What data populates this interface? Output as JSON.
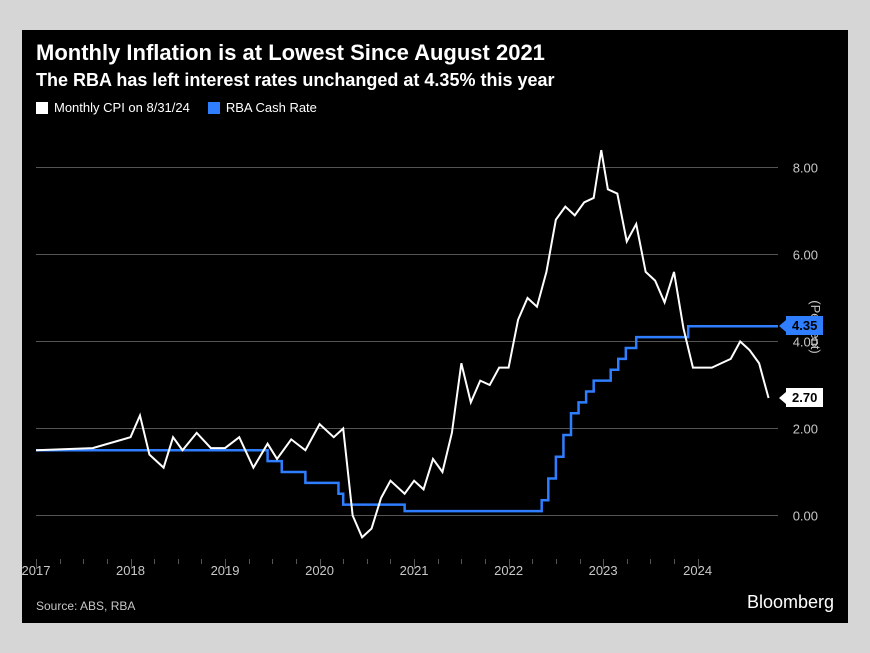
{
  "title": "Monthly Inflation is at Lowest Since August 2021",
  "subtitle": "The RBA has left interest rates unchanged at 4.35% this year",
  "title_fontsize": 22,
  "subtitle_fontsize": 18,
  "source": "Source: ABS, RBA",
  "brand": "Bloomberg",
  "background_color": "#000000",
  "text_color": "#ffffff",
  "muted_text_color": "#c7c7c7",
  "grid_color": "#555555",
  "xAxis": {
    "min": 2017.0,
    "max": 2024.85,
    "majorTicks": [
      2017,
      2018,
      2019,
      2020,
      2021,
      2022,
      2023,
      2024
    ],
    "minorPerMajor": 3
  },
  "yAxis": {
    "min": -1.0,
    "max": 9.0,
    "ticks": [
      0,
      2,
      4,
      6,
      8
    ],
    "tickLabels": [
      "0.00",
      "2.00",
      "4.00",
      "6.00",
      "8.00"
    ],
    "title": "(Percent)"
  },
  "series": [
    {
      "name": "Monthly CPI on 8/31/24",
      "color": "#ffffff",
      "lineWidth": 2,
      "endLabel": "2.70",
      "endLabelBg": "#ffffff",
      "endLabelColor": "#000000",
      "data": [
        [
          2017.0,
          1.5
        ],
        [
          2017.6,
          1.55
        ],
        [
          2018.0,
          1.8
        ],
        [
          2018.1,
          2.3
        ],
        [
          2018.2,
          1.4
        ],
        [
          2018.35,
          1.1
        ],
        [
          2018.45,
          1.8
        ],
        [
          2018.55,
          1.5
        ],
        [
          2018.7,
          1.9
        ],
        [
          2018.85,
          1.55
        ],
        [
          2019.0,
          1.55
        ],
        [
          2019.15,
          1.8
        ],
        [
          2019.3,
          1.1
        ],
        [
          2019.45,
          1.65
        ],
        [
          2019.55,
          1.3
        ],
        [
          2019.7,
          1.75
        ],
        [
          2019.85,
          1.5
        ],
        [
          2020.0,
          2.1
        ],
        [
          2020.15,
          1.8
        ],
        [
          2020.25,
          2.0
        ],
        [
          2020.35,
          0.0
        ],
        [
          2020.45,
          -0.5
        ],
        [
          2020.55,
          -0.3
        ],
        [
          2020.65,
          0.4
        ],
        [
          2020.75,
          0.8
        ],
        [
          2020.9,
          0.5
        ],
        [
          2021.0,
          0.8
        ],
        [
          2021.1,
          0.6
        ],
        [
          2021.2,
          1.3
        ],
        [
          2021.3,
          1.0
        ],
        [
          2021.4,
          1.9
        ],
        [
          2021.5,
          3.5
        ],
        [
          2021.6,
          2.6
        ],
        [
          2021.7,
          3.1
        ],
        [
          2021.8,
          3.0
        ],
        [
          2021.9,
          3.4
        ],
        [
          2022.0,
          3.4
        ],
        [
          2022.1,
          4.5
        ],
        [
          2022.2,
          5.0
        ],
        [
          2022.3,
          4.8
        ],
        [
          2022.4,
          5.6
        ],
        [
          2022.5,
          6.8
        ],
        [
          2022.6,
          7.1
        ],
        [
          2022.7,
          6.9
        ],
        [
          2022.8,
          7.2
        ],
        [
          2022.9,
          7.3
        ],
        [
          2022.98,
          8.4
        ],
        [
          2023.05,
          7.5
        ],
        [
          2023.15,
          7.4
        ],
        [
          2023.25,
          6.3
        ],
        [
          2023.35,
          6.7
        ],
        [
          2023.45,
          5.6
        ],
        [
          2023.55,
          5.4
        ],
        [
          2023.65,
          4.9
        ],
        [
          2023.75,
          5.6
        ],
        [
          2023.85,
          4.3
        ],
        [
          2023.95,
          3.4
        ],
        [
          2024.05,
          3.4
        ],
        [
          2024.15,
          3.4
        ],
        [
          2024.25,
          3.5
        ],
        [
          2024.35,
          3.6
        ],
        [
          2024.45,
          4.0
        ],
        [
          2024.55,
          3.8
        ],
        [
          2024.65,
          3.5
        ],
        [
          2024.75,
          2.7
        ]
      ]
    },
    {
      "name": "RBA Cash Rate",
      "color": "#2e7eff",
      "lineWidth": 2.5,
      "endLabel": "4.35",
      "endLabelBg": "#2e7eff",
      "endLabelColor": "#000000",
      "data": [
        [
          2017.0,
          1.5
        ],
        [
          2019.4,
          1.5
        ],
        [
          2019.45,
          1.25
        ],
        [
          2019.55,
          1.25
        ],
        [
          2019.6,
          1.0
        ],
        [
          2019.8,
          1.0
        ],
        [
          2019.85,
          0.75
        ],
        [
          2020.15,
          0.75
        ],
        [
          2020.2,
          0.5
        ],
        [
          2020.25,
          0.25
        ],
        [
          2020.85,
          0.25
        ],
        [
          2020.9,
          0.1
        ],
        [
          2022.3,
          0.1
        ],
        [
          2022.35,
          0.35
        ],
        [
          2022.42,
          0.85
        ],
        [
          2022.5,
          1.35
        ],
        [
          2022.58,
          1.85
        ],
        [
          2022.66,
          2.35
        ],
        [
          2022.74,
          2.6
        ],
        [
          2022.82,
          2.85
        ],
        [
          2022.9,
          3.1
        ],
        [
          2023.0,
          3.1
        ],
        [
          2023.08,
          3.35
        ],
        [
          2023.16,
          3.6
        ],
        [
          2023.24,
          3.85
        ],
        [
          2023.35,
          4.1
        ],
        [
          2023.85,
          4.1
        ],
        [
          2023.9,
          4.35
        ],
        [
          2024.85,
          4.35
        ]
      ]
    }
  ]
}
